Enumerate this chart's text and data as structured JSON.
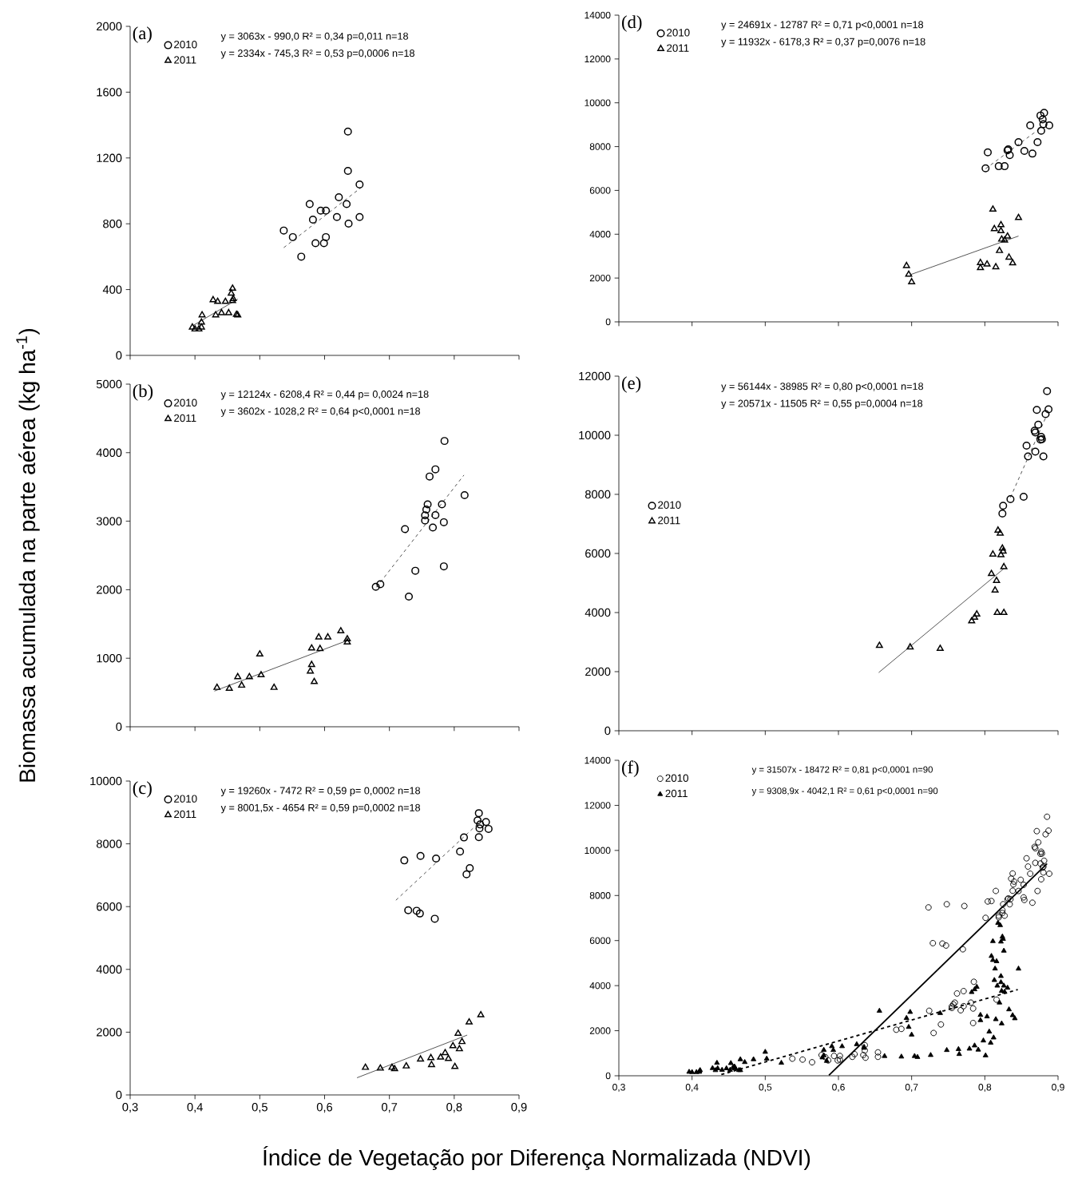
{
  "chart_data": [
    {
      "type": "scatter",
      "title": "(a)",
      "legend": "top left",
      "tick_labels": "y",
      "xlim": [
        0.3,
        0.9
      ],
      "xticks": [
        {
          "value": 0.3,
          "label": null
        },
        {
          "value": 0.4,
          "label": null
        },
        {
          "value": 0.5,
          "label": null
        },
        {
          "value": 0.6,
          "label": null
        },
        {
          "value": 0.7,
          "label": null
        },
        {
          "value": 0.8,
          "label": null
        },
        {
          "value": 0.9,
          "label": null
        }
      ],
      "ylim": [
        0,
        2000
      ],
      "yticks": [
        0,
        400,
        800,
        1200,
        1600,
        2000
      ],
      "annotations": [
        "y = 3063x - 990,0 R² = 0,34 p=0,011 n=18",
        "y = 2334x - 745,3 R² = 0,53 p=0,0006 n=18"
      ],
      "series": [
        {
          "name": "2010",
          "type": "scatter",
          "marker": "circle",
          "color": "#000000",
          "x": [
            0.636,
            0.636,
            0.654,
            0.622,
            0.577,
            0.634,
            0.594,
            0.602,
            0.619,
            0.654,
            0.582,
            0.637,
            0.537,
            0.551,
            0.602,
            0.586,
            0.599,
            0.564
          ],
          "values": [
            1360,
            1121,
            1039,
            961,
            920,
            920,
            880,
            880,
            841,
            841,
            825,
            801,
            759,
            719,
            719,
            682,
            682,
            600
          ]
        },
        {
          "name": "2011",
          "type": "scatter",
          "marker": "triangle",
          "color": "#000000",
          "x": [
            0.458,
            0.456,
            0.428,
            0.435,
            0.447,
            0.458,
            0.459,
            0.411,
            0.432,
            0.441,
            0.452,
            0.464,
            0.466,
            0.41,
            0.396,
            0.4,
            0.406,
            0.41
          ],
          "values": [
            407,
            377,
            337,
            327,
            327,
            332,
            344,
            245,
            245,
            258,
            258,
            248,
            245,
            201,
            171,
            159,
            159,
            171
          ]
        },
        {
          "type": "line",
          "line_style": "dashed",
          "color": "#000000",
          "x": [
            0.537,
            0.656
          ],
          "values": [
            655,
            1019
          ]
        },
        {
          "type": "line",
          "line_style": "solid",
          "color": "#000000",
          "x": [
            0.396,
            0.466
          ],
          "values": [
            179,
            342
          ]
        }
      ]
    },
    {
      "type": "scatter",
      "title": "(b)",
      "legend": "top left",
      "tick_labels": "y",
      "ylabel": "Biomassa acumulada na parte aérea (kg ha$^{-1}$)",
      "xlim": [
        0.3,
        0.9
      ],
      "xticks": [
        {
          "value": 0.3,
          "label": null
        },
        {
          "value": 0.4,
          "label": null
        },
        {
          "value": 0.5,
          "label": null
        },
        {
          "value": 0.6,
          "label": null
        },
        {
          "value": 0.7,
          "label": null
        },
        {
          "value": 0.8,
          "label": null
        },
        {
          "value": 0.9,
          "label": null
        }
      ],
      "ylim": [
        0,
        5000
      ],
      "yticks": [
        0,
        1000,
        2000,
        3000,
        4000,
        5000
      ],
      "annotations": [
        "y = 12124x - 6208,4 R² = 0,44 p= 0,0024 n=18",
        "y = 3602x - 1028,2 R² = 0,64 p<0,0001 n=18"
      ],
      "series": [
        {
          "name": "2010",
          "type": "scatter",
          "marker": "circle",
          "color": "#000000",
          "x": [
            0.785,
            0.771,
            0.762,
            0.816,
            0.759,
            0.781,
            0.757,
            0.755,
            0.771,
            0.755,
            0.784,
            0.767,
            0.724,
            0.74,
            0.784,
            0.686,
            0.679,
            0.73
          ],
          "values": [
            4171,
            3757,
            3652,
            3379,
            3246,
            3246,
            3170,
            3085,
            3089,
            3009,
            2985,
            2908,
            2884,
            2277,
            2341,
            2080,
            2043,
            1899
          ]
        },
        {
          "name": "2011",
          "type": "scatter",
          "marker": "triangle",
          "color": "#000000",
          "x": [
            0.625,
            0.635,
            0.635,
            0.591,
            0.605,
            0.58,
            0.593,
            0.5,
            0.58,
            0.578,
            0.584,
            0.502,
            0.466,
            0.484,
            0.472,
            0.434,
            0.453,
            0.522
          ],
          "values": [
            1396,
            1279,
            1235,
            1307,
            1307,
            1146,
            1138,
            1058,
            905,
            809,
            656,
            756,
            728,
            728,
            603,
            571,
            559,
            571
          ]
        },
        {
          "type": "line",
          "line_style": "dashed",
          "color": "#000000",
          "x": [
            0.68,
            0.815
          ],
          "values": [
            2036,
            3673
          ]
        },
        {
          "type": "line",
          "line_style": "solid",
          "color": "#000000",
          "x": [
            0.43,
            0.635
          ],
          "values": [
            521,
            1259
          ]
        }
      ]
    },
    {
      "type": "scatter",
      "title": "(c)",
      "legend": "top left",
      "xlabel": "Índice de Vegetação por Diferença Normalizada (NDVI)",
      "xlim": [
        0.3,
        0.9
      ],
      "xticks": [
        {
          "value": 0.3,
          "label": "0,3"
        },
        {
          "value": 0.4,
          "label": "0,4"
        },
        {
          "value": 0.5,
          "label": "0,5"
        },
        {
          "value": 0.6,
          "label": "0,6"
        },
        {
          "value": 0.7,
          "label": "0,7"
        },
        {
          "value": 0.8,
          "label": "0,8"
        },
        {
          "value": 0.9,
          "label": "0,9"
        }
      ],
      "ylim": [
        0,
        10000
      ],
      "yticks": [
        0,
        2000,
        4000,
        6000,
        8000,
        10000
      ],
      "annotations": [
        "y = 19260x - 7472 R² = 0,59 p= 0,0002 n=18",
        "y = 8001,5x - 4654 R² = 0,59 p=0,0002 n=18"
      ],
      "series": [
        {
          "name": "2010",
          "type": "scatter",
          "marker": "circle",
          "color": "#000000",
          "x": [
            0.838,
            0.836,
            0.849,
            0.84,
            0.839,
            0.853,
            0.838,
            0.815,
            0.809,
            0.748,
            0.772,
            0.723,
            0.824,
            0.819,
            0.729,
            0.742,
            0.747,
            0.77
          ],
          "values": [
            8978,
            8749,
            8697,
            8617,
            8494,
            8476,
            8212,
            8203,
            7754,
            7613,
            7533,
            7472,
            7225,
            7031,
            5886,
            5868,
            5780,
            5613
          ]
        },
        {
          "name": "2011",
          "type": "scatter",
          "marker": "triangle",
          "color": "#000000",
          "x": [
            0.841,
            0.823,
            0.806,
            0.812,
            0.798,
            0.808,
            0.786,
            0.779,
            0.764,
            0.791,
            0.748,
            0.726,
            0.704,
            0.708,
            0.765,
            0.801,
            0.686,
            0.663
          ],
          "values": [
            2546,
            2317,
            1956,
            1692,
            1560,
            1463,
            1339,
            1198,
            1181,
            1154,
            1137,
            916,
            872,
            828,
            960,
            899,
            846,
            872
          ]
        },
        {
          "type": "line",
          "line_style": "dashed",
          "color": "#000000",
          "x": [
            0.71,
            0.835
          ],
          "values": [
            6203,
            8610
          ]
        },
        {
          "type": "line",
          "line_style": "solid",
          "color": "#000000",
          "x": [
            0.65,
            0.82
          ],
          "values": [
            547,
            1907
          ]
        }
      ]
    },
    {
      "type": "scatter",
      "title": "(d)",
      "legend": "top left",
      "tick_labels": "y",
      "xlim": [
        0.3,
        0.9
      ],
      "xticks": [
        {
          "value": 0.3,
          "label": null
        },
        {
          "value": 0.4,
          "label": null
        },
        {
          "value": 0.5,
          "label": null
        },
        {
          "value": 0.6,
          "label": null
        },
        {
          "value": 0.7,
          "label": null
        },
        {
          "value": 0.8,
          "label": null
        },
        {
          "value": 0.9,
          "label": null
        }
      ],
      "ylim": [
        0,
        14000
      ],
      "yticks": [
        0,
        2000,
        4000,
        6000,
        8000,
        10000,
        12000,
        14000
      ],
      "annotations": [
        "y = 24691x - 12787 R² = 0,71 p<0,0001 n=18",
        "y = 11932x - 6178,3 R² = 0,37 p=0,0076 n=18"
      ],
      "series": [
        {
          "name": "2010",
          "type": "scatter",
          "marker": "circle",
          "color": "#000000",
          "x": [
            0.881,
            0.876,
            0.879,
            0.862,
            0.88,
            0.888,
            0.877,
            0.846,
            0.872,
            0.832,
            0.831,
            0.854,
            0.865,
            0.804,
            0.834,
            0.819,
            0.827,
            0.801
          ],
          "values": [
            9542,
            9419,
            9241,
            8967,
            9022,
            8967,
            8721,
            8200,
            8200,
            7872,
            7831,
            7803,
            7680,
            7735,
            7612,
            7105,
            7105,
            7009
          ]
        },
        {
          "name": "2011",
          "type": "scatter",
          "marker": "triangle",
          "color": "#000000",
          "x": [
            0.811,
            0.846,
            0.822,
            0.813,
            0.822,
            0.831,
            0.823,
            0.827,
            0.82,
            0.833,
            0.838,
            0.794,
            0.803,
            0.794,
            0.815,
            0.693,
            0.696,
            0.7
          ],
          "values": [
            5134,
            4750,
            4422,
            4244,
            4148,
            3902,
            3765,
            3724,
            3245,
            2943,
            2683,
            2697,
            2628,
            2464,
            2505,
            2560,
            2163,
            1821
          ]
        },
        {
          "type": "line",
          "line_style": "dashed",
          "color": "#000000",
          "x": [
            0.801,
            0.877
          ],
          "values": [
            6990,
            8867
          ]
        },
        {
          "type": "line",
          "line_style": "solid",
          "color": "#000000",
          "x": [
            0.698,
            0.846
          ],
          "values": [
            2150,
            3916
          ]
        }
      ]
    },
    {
      "type": "scatter",
      "title": "(e)",
      "legend": "left",
      "tick_labels": "y",
      "xlim": [
        0.3,
        0.9
      ],
      "xticks": [
        {
          "value": 0.3,
          "label": null
        },
        {
          "value": 0.4,
          "label": null
        },
        {
          "value": 0.5,
          "label": null
        },
        {
          "value": 0.6,
          "label": null
        },
        {
          "value": 0.7,
          "label": null
        },
        {
          "value": 0.8,
          "label": null
        },
        {
          "value": 0.9,
          "label": null
        }
      ],
      "ylim": [
        0,
        12000
      ],
      "yticks": [
        0,
        2000,
        4000,
        6000,
        8000,
        10000,
        12000
      ],
      "annotations": [
        "y = 56144x - 38985 R² = 0,80 p<0,0001 n=18",
        "y = 20571x - 11505 R² = 0,55 p=0,0004 n=18"
      ],
      "series": [
        {
          "name": "2010",
          "type": "scatter",
          "marker": "circle",
          "color": "#000000",
          "x": [
            0.885,
            0.871,
            0.887,
            0.883,
            0.873,
            0.868,
            0.869,
            0.877,
            0.878,
            0.876,
            0.857,
            0.869,
            0.859,
            0.88,
            0.853,
            0.835,
            0.825,
            0.824
          ],
          "values": [
            11495,
            10857,
            10877,
            10715,
            10360,
            10157,
            10096,
            9944,
            9863,
            9853,
            9650,
            9448,
            9285,
            9285,
            7917,
            7836,
            7613,
            7349
          ]
        },
        {
          "name": "2011",
          "type": "scatter",
          "marker": "triangle",
          "color": "#000000",
          "x": [
            0.818,
            0.821,
            0.824,
            0.825,
            0.811,
            0.822,
            0.826,
            0.809,
            0.816,
            0.814,
            0.817,
            0.826,
            0.789,
            0.786,
            0.782,
            0.656,
            0.698,
            0.739
          ],
          "values": [
            6782,
            6680,
            6173,
            6072,
            5971,
            5950,
            5545,
            5312,
            5079,
            4754,
            3994,
            3994,
            3943,
            3832,
            3710,
            2879,
            2828,
            2778
          ]
        },
        {
          "type": "line",
          "line_style": "dashed",
          "color": "#000000",
          "x": [
            0.835,
            0.883
          ],
          "values": [
            7895,
            10590
          ]
        },
        {
          "type": "line",
          "line_style": "solid",
          "color": "#000000",
          "x": [
            0.655,
            0.826
          ],
          "values": [
            1969,
            5487
          ]
        }
      ]
    },
    {
      "type": "scatter",
      "title": "(f)",
      "legend": "top left",
      "xlim": [
        0.3,
        0.9
      ],
      "xticks": [
        {
          "value": 0.3,
          "label": "0,3"
        },
        {
          "value": 0.4,
          "label": "0,4"
        },
        {
          "value": 0.5,
          "label": "0,5"
        },
        {
          "value": 0.6,
          "label": "0,6"
        },
        {
          "value": 0.7,
          "label": "0,7"
        },
        {
          "value": 0.8,
          "label": "0,8"
        },
        {
          "value": 0.9,
          "label": "0,9"
        }
      ],
      "ylim": [
        0,
        14000
      ],
      "yticks": [
        0,
        2000,
        4000,
        6000,
        8000,
        10000,
        12000,
        14000
      ],
      "annotations": [
        "y = 31507x - 18472 R² = 0,81 p<0,0001 n=90",
        "y = 9308,9x - 4042,1 R² = 0,61 p<0,0001 n=90"
      ],
      "series": [
        {
          "name": "2010",
          "type": "scatter",
          "marker": "circle",
          "color": "#000000",
          "x": [
            0.636,
            0.636,
            0.654,
            0.622,
            0.577,
            0.634,
            0.594,
            0.602,
            0.619,
            0.654,
            0.582,
            0.637,
            0.537,
            0.551,
            0.602,
            0.586,
            0.599,
            0.564,
            0.785,
            0.771,
            0.762,
            0.816,
            0.759,
            0.781,
            0.757,
            0.755,
            0.771,
            0.755,
            0.784,
            0.767,
            0.724,
            0.74,
            0.784,
            0.686,
            0.679,
            0.73,
            0.838,
            0.836,
            0.849,
            0.84,
            0.839,
            0.853,
            0.838,
            0.815,
            0.809,
            0.748,
            0.772,
            0.723,
            0.824,
            0.819,
            0.729,
            0.742,
            0.747,
            0.77,
            0.881,
            0.876,
            0.879,
            0.862,
            0.88,
            0.888,
            0.877,
            0.846,
            0.872,
            0.832,
            0.831,
            0.854,
            0.865,
            0.804,
            0.834,
            0.819,
            0.827,
            0.801,
            0.885,
            0.871,
            0.887,
            0.883,
            0.873,
            0.868,
            0.869,
            0.877,
            0.878,
            0.876,
            0.857,
            0.869,
            0.859,
            0.88,
            0.853,
            0.835,
            0.825,
            0.824
          ],
          "values": [
            1360,
            1121,
            1039,
            961,
            920,
            920,
            880,
            880,
            841,
            841,
            825,
            801,
            759,
            719,
            719,
            682,
            682,
            600,
            4171,
            3757,
            3652,
            3379,
            3246,
            3246,
            3170,
            3085,
            3089,
            3009,
            2985,
            2908,
            2884,
            2277,
            2341,
            2080,
            2043,
            1899,
            8978,
            8749,
            8697,
            8617,
            8494,
            8476,
            8212,
            8203,
            7754,
            7613,
            7533,
            7472,
            7225,
            7031,
            5886,
            5868,
            5780,
            5613,
            9542,
            9419,
            9241,
            8967,
            9022,
            8967,
            8721,
            8200,
            8200,
            7872,
            7831,
            7803,
            7680,
            7735,
            7612,
            7105,
            7105,
            7009,
            11495,
            10857,
            10877,
            10715,
            10360,
            10157,
            10096,
            9944,
            9863,
            9853,
            9650,
            9448,
            9285,
            9285,
            7917,
            7836,
            7613,
            7349
          ]
        },
        {
          "name": "2011",
          "type": "scatter",
          "marker": "triangle",
          "color": "#000000",
          "x": [
            0.458,
            0.456,
            0.428,
            0.435,
            0.447,
            0.458,
            0.459,
            0.411,
            0.432,
            0.441,
            0.452,
            0.464,
            0.466,
            0.41,
            0.396,
            0.4,
            0.406,
            0.41,
            0.625,
            0.635,
            0.635,
            0.591,
            0.605,
            0.58,
            0.593,
            0.5,
            0.58,
            0.578,
            0.584,
            0.502,
            0.466,
            0.484,
            0.472,
            0.434,
            0.453,
            0.522,
            0.841,
            0.823,
            0.806,
            0.812,
            0.798,
            0.808,
            0.786,
            0.779,
            0.764,
            0.791,
            0.748,
            0.726,
            0.704,
            0.708,
            0.765,
            0.801,
            0.686,
            0.663,
            0.811,
            0.846,
            0.822,
            0.813,
            0.822,
            0.831,
            0.823,
            0.827,
            0.82,
            0.833,
            0.838,
            0.794,
            0.803,
            0.794,
            0.815,
            0.693,
            0.696,
            0.7,
            0.818,
            0.821,
            0.824,
            0.825,
            0.811,
            0.822,
            0.826,
            0.809,
            0.816,
            0.814,
            0.817,
            0.826,
            0.789,
            0.786,
            0.782,
            0.656,
            0.698,
            0.739
          ],
          "values": [
            407,
            377,
            337,
            327,
            327,
            332,
            344,
            245,
            245,
            258,
            258,
            248,
            245,
            201,
            171,
            159,
            159,
            171,
            1396,
            1279,
            1235,
            1307,
            1307,
            1146,
            1138,
            1058,
            905,
            809,
            656,
            756,
            728,
            728,
            603,
            571,
            559,
            571,
            2546,
            2317,
            1956,
            1692,
            1560,
            1463,
            1339,
            1198,
            1181,
            1154,
            1137,
            916,
            872,
            828,
            960,
            899,
            846,
            872,
            5134,
            4750,
            4422,
            4244,
            4148,
            3902,
            3765,
            3724,
            3245,
            2943,
            2683,
            2697,
            2628,
            2464,
            2505,
            2560,
            2163,
            1821,
            6782,
            6680,
            6173,
            6072,
            5971,
            5950,
            5545,
            5312,
            5079,
            4754,
            3994,
            3994,
            3943,
            3832,
            3710,
            2879,
            2828,
            2778
          ]
        },
        {
          "type": "line",
          "line_style": "solid",
          "color": "#000000",
          "x": [
            0.587,
            0.885
          ],
          "values": [
            23,
            9412
          ]
        },
        {
          "type": "line",
          "line_style": "dashed",
          "color": "#000000",
          "x": [
            0.44,
            0.845
          ],
          "values": [
            54,
            3824
          ]
        }
      ]
    }
  ]
}
